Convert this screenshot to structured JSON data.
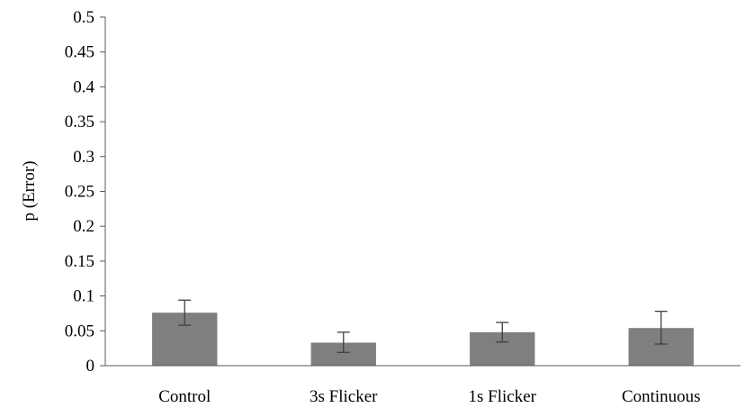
{
  "chart_data": {
    "type": "bar",
    "categories": [
      "Control",
      "3s Flicker",
      "1s Flicker",
      "Continuous"
    ],
    "values": [
      0.076,
      0.033,
      0.048,
      0.054
    ],
    "error_bars": {
      "low": [
        0.058,
        0.019,
        0.034,
        0.031
      ],
      "high": [
        0.094,
        0.048,
        0.062,
        0.078
      ]
    },
    "ylabel": "p (Error)",
    "xlabel": "",
    "ylim": [
      0,
      0.5
    ],
    "yticks": [
      "0",
      "0.05",
      "0.1",
      "0.15",
      "0.2",
      "0.25",
      "0.3",
      "0.35",
      "0.4",
      "0.45",
      "0.5"
    ],
    "grid": false,
    "legend": "none",
    "bar_color": "#7f7f7f",
    "error_color": "#404040",
    "axis_color": "#595959"
  }
}
